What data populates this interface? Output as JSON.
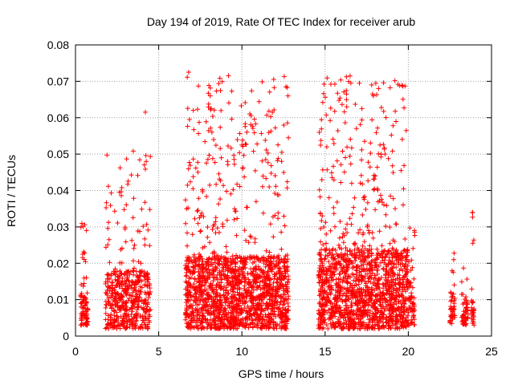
{
  "chart_data": {
    "type": "scatter",
    "title": "Day 194 of 2019, Rate Of TEC Index for receiver arub",
    "xlabel": "GPS time / hours",
    "ylabel": "ROTI / TECUs",
    "xlim": [
      0,
      25
    ],
    "ylim": [
      0,
      0.08
    ],
    "x_ticks": [
      0,
      5,
      10,
      15,
      20,
      25
    ],
    "y_ticks": [
      0,
      0.01,
      0.02,
      0.03,
      0.04,
      0.05,
      0.06,
      0.07,
      0.08
    ],
    "grid": true,
    "legend": "none",
    "marker": "plus",
    "color": "#ff0000",
    "clusters": [
      {
        "x_range": [
          0.3,
          0.75
        ],
        "y_base": [
          0.003,
          0.012
        ],
        "y_max": 0.031,
        "density": 90
      },
      {
        "x_range": [
          1.8,
          4.5
        ],
        "y_base": [
          0.002,
          0.018
        ],
        "y_max": 0.051,
        "density": 520
      },
      {
        "x_range": [
          6.6,
          12.8
        ],
        "y_base": [
          0.002,
          0.022
        ],
        "y_max": 0.072,
        "density": 1700
      },
      {
        "x_range": [
          14.6,
          20.0
        ],
        "y_base": [
          0.002,
          0.024
        ],
        "y_max": 0.072,
        "density": 1500
      },
      {
        "x_range": [
          20.0,
          20.4
        ],
        "y_base": [
          0.003,
          0.015
        ],
        "y_max": 0.033,
        "density": 60
      },
      {
        "x_range": [
          22.5,
          22.8
        ],
        "y_base": [
          0.003,
          0.012
        ],
        "y_max": 0.024,
        "density": 45
      },
      {
        "x_range": [
          23.2,
          23.6
        ],
        "y_base": [
          0.003,
          0.012
        ],
        "y_max": 0.022,
        "density": 50
      },
      {
        "x_range": [
          23.8,
          23.95
        ],
        "y_base": [
          0.003,
          0.01
        ],
        "y_max": 0.034,
        "density": 30
      }
    ],
    "outliers": [
      {
        "x": 4.2,
        "y": 0.0615
      },
      {
        "x": 4.25,
        "y": 0.048
      },
      {
        "x": 6.8,
        "y": 0.0725
      },
      {
        "x": 6.85,
        "y": 0.0595
      },
      {
        "x": 8.1,
        "y": 0.066
      },
      {
        "x": 8.15,
        "y": 0.0625
      },
      {
        "x": 8.2,
        "y": 0.056
      },
      {
        "x": 8.3,
        "y": 0.054
      },
      {
        "x": 10.0,
        "y": 0.0525
      },
      {
        "x": 12.4,
        "y": 0.0505
      },
      {
        "x": 15.1,
        "y": 0.052
      },
      {
        "x": 16.3,
        "y": 0.063
      },
      {
        "x": 16.5,
        "y": 0.0715
      },
      {
        "x": 16.55,
        "y": 0.0695
      },
      {
        "x": 17.8,
        "y": 0.069
      },
      {
        "x": 17.85,
        "y": 0.0665
      },
      {
        "x": 17.9,
        "y": 0.066
      },
      {
        "x": 18.3,
        "y": 0.0525
      },
      {
        "x": 18.6,
        "y": 0.05
      },
      {
        "x": 23.85,
        "y": 0.034
      }
    ]
  }
}
